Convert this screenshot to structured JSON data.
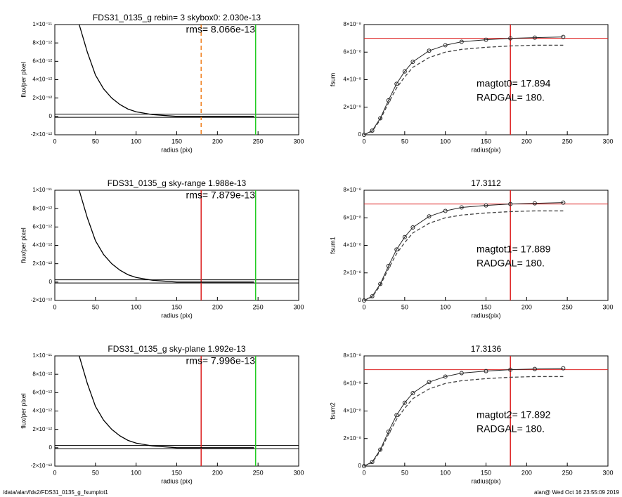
{
  "chart_data": [
    {
      "type": "line",
      "title": "FDS31_0135_g rebin= 3    skybox0:  2.030e-13",
      "annotations": [
        "rms= 8.066e-13"
      ],
      "xlabel": "radius (pix)",
      "ylabel": "flux/per pixel",
      "xlim": [
        0,
        300
      ],
      "xticks": [
        0,
        50,
        100,
        150,
        200,
        250,
        300
      ],
      "ylim": [
        -2e-12,
        1e-11
      ],
      "yticks": [
        {
          "value": -2e-12,
          "label": "-2×10⁻¹²"
        },
        0,
        {
          "value": 2e-12,
          "label": "2×10⁻¹²"
        },
        {
          "value": 4e-12,
          "label": "4×10⁻¹²"
        },
        {
          "value": 6e-12,
          "label": "6×10⁻¹²"
        },
        {
          "value": 8e-12,
          "label": "8×10⁻¹²"
        },
        {
          "value": 1e-11,
          "label": "1×10⁻¹¹"
        }
      ],
      "x": [
        30,
        40,
        50,
        60,
        70,
        80,
        90,
        100,
        120,
        150,
        200,
        245
      ],
      "series": [
        {
          "color": "#000000",
          "values": [
            1e-11,
            7e-12,
            4.5e-12,
            3e-12,
            2e-12,
            1.3e-12,
            8e-13,
            5e-13,
            2e-13,
            0,
            0,
            0
          ]
        }
      ],
      "hlines": [
        {
          "y": 2.5e-13,
          "color": "#000000"
        },
        {
          "y": -1e-13,
          "color": "#000000"
        }
      ],
      "vlines": [
        {
          "x": 180,
          "color": "#f08020",
          "dashed": true
        },
        {
          "x": 247,
          "color": "#22cc22"
        }
      ]
    },
    {
      "type": "line",
      "annotations": [
        "magtot0=  17.894",
        "RADGAL=    180."
      ],
      "xlabel": "radius(pix)",
      "ylabel": "fsum",
      "xlim": [
        0,
        300
      ],
      "xticks": [
        0,
        50,
        100,
        150,
        200,
        250,
        300
      ],
      "ylim": [
        0,
        8e-08
      ],
      "yticks": [
        0,
        {
          "value": 2e-08,
          "label": "2×10⁻⁸"
        },
        {
          "value": 4e-08,
          "label": "4×10⁻⁸"
        },
        {
          "value": 6e-08,
          "label": "6×10⁻⁸"
        },
        {
          "value": 8e-08,
          "label": "8×10⁻⁸"
        }
      ],
      "x": [
        0,
        10,
        20,
        30,
        40,
        50,
        60,
        80,
        100,
        120,
        150,
        180,
        210,
        245
      ],
      "series": [
        {
          "color": "#222222",
          "marker": "circle",
          "values": [
            0,
            3e-09,
            1.2e-08,
            2.5e-08,
            3.7e-08,
            4.6e-08,
            5.3e-08,
            6.1e-08,
            6.5e-08,
            6.75e-08,
            6.9e-08,
            7e-08,
            7.05e-08,
            7.1e-08
          ]
        },
        {
          "color": "#444444",
          "dashed": true,
          "values": [
            0,
            2.5e-09,
            1.1e-08,
            2.3e-08,
            3.4e-08,
            4.2e-08,
            4.9e-08,
            5.6e-08,
            6e-08,
            6.2e-08,
            6.35e-08,
            6.45e-08,
            6.5e-08,
            6.5e-08
          ]
        }
      ],
      "hlines": [
        {
          "y": 7e-08,
          "color": "#dd2222"
        }
      ],
      "vlines": [
        {
          "x": 180,
          "color": "#dd2222"
        }
      ]
    },
    {
      "type": "line",
      "title": "FDS31_0135_g sky-range  1.988e-13",
      "annotations": [
        "rms= 7.879e-13"
      ],
      "xlabel": "radius (pix)",
      "ylabel": "flux/per pixel",
      "xlim": [
        0,
        300
      ],
      "xticks": [
        0,
        50,
        100,
        150,
        200,
        250,
        300
      ],
      "ylim": [
        -2e-12,
        1e-11
      ],
      "yticks": [
        {
          "value": -2e-12,
          "label": "-2×10⁻¹²"
        },
        0,
        {
          "value": 2e-12,
          "label": "2×10⁻¹²"
        },
        {
          "value": 4e-12,
          "label": "4×10⁻¹²"
        },
        {
          "value": 6e-12,
          "label": "6×10⁻¹²"
        },
        {
          "value": 8e-12,
          "label": "8×10⁻¹²"
        },
        {
          "value": 1e-11,
          "label": "1×10⁻¹¹"
        }
      ],
      "x": [
        30,
        40,
        50,
        60,
        70,
        80,
        90,
        100,
        120,
        150,
        200,
        245
      ],
      "series": [
        {
          "color": "#000000",
          "values": [
            1e-11,
            7e-12,
            4.5e-12,
            3e-12,
            2e-12,
            1.3e-12,
            8e-13,
            5e-13,
            2e-13,
            0,
            0,
            0
          ]
        }
      ],
      "hlines": [
        {
          "y": 2.5e-13,
          "color": "#000000"
        },
        {
          "y": -1e-13,
          "color": "#000000"
        }
      ],
      "vlines": [
        {
          "x": 180,
          "color": "#dd2222"
        },
        {
          "x": 247,
          "color": "#22cc22"
        }
      ]
    },
    {
      "type": "line",
      "title": "17.3112",
      "annotations": [
        "magtot1=  17.889",
        "RADGAL=    180."
      ],
      "xlabel": "radius(pix)",
      "ylabel": "fsum1",
      "xlim": [
        0,
        300
      ],
      "xticks": [
        0,
        50,
        100,
        150,
        200,
        250,
        300
      ],
      "ylim": [
        0,
        8e-08
      ],
      "yticks": [
        0,
        {
          "value": 2e-08,
          "label": "2×10⁻⁸"
        },
        {
          "value": 4e-08,
          "label": "4×10⁻⁸"
        },
        {
          "value": 6e-08,
          "label": "6×10⁻⁸"
        },
        {
          "value": 8e-08,
          "label": "8×10⁻⁸"
        }
      ],
      "x": [
        0,
        10,
        20,
        30,
        40,
        50,
        60,
        80,
        100,
        120,
        150,
        180,
        210,
        245
      ],
      "series": [
        {
          "color": "#222222",
          "marker": "circle",
          "values": [
            0,
            3e-09,
            1.2e-08,
            2.5e-08,
            3.7e-08,
            4.6e-08,
            5.3e-08,
            6.1e-08,
            6.5e-08,
            6.75e-08,
            6.9e-08,
            7e-08,
            7.05e-08,
            7.1e-08
          ]
        },
        {
          "color": "#444444",
          "dashed": true,
          "values": [
            0,
            2.5e-09,
            1.1e-08,
            2.3e-08,
            3.4e-08,
            4.2e-08,
            4.9e-08,
            5.6e-08,
            6e-08,
            6.2e-08,
            6.35e-08,
            6.45e-08,
            6.5e-08,
            6.5e-08
          ]
        }
      ],
      "hlines": [
        {
          "y": 7e-08,
          "color": "#dd2222"
        }
      ],
      "vlines": [
        {
          "x": 180,
          "color": "#dd2222"
        }
      ]
    },
    {
      "type": "line",
      "title": "FDS31_0135_g sky-plane  1.992e-13",
      "annotations": [
        "rms= 7.996e-13"
      ],
      "xlabel": "radius (pix)",
      "ylabel": "flux/per pixel",
      "xlim": [
        0,
        300
      ],
      "xticks": [
        0,
        50,
        100,
        150,
        200,
        250,
        300
      ],
      "ylim": [
        -2e-12,
        1e-11
      ],
      "yticks": [
        {
          "value": -2e-12,
          "label": "-2×10⁻¹²"
        },
        0,
        {
          "value": 2e-12,
          "label": "2×10⁻¹²"
        },
        {
          "value": 4e-12,
          "label": "4×10⁻¹²"
        },
        {
          "value": 6e-12,
          "label": "6×10⁻¹²"
        },
        {
          "value": 8e-12,
          "label": "8×10⁻¹²"
        },
        {
          "value": 1e-11,
          "label": "1×10⁻¹¹"
        }
      ],
      "x": [
        30,
        40,
        50,
        60,
        70,
        80,
        90,
        100,
        120,
        150,
        200,
        245
      ],
      "series": [
        {
          "color": "#000000",
          "values": [
            1e-11,
            7e-12,
            4.5e-12,
            3e-12,
            2e-12,
            1.3e-12,
            8e-13,
            5e-13,
            2e-13,
            0,
            0,
            0
          ]
        }
      ],
      "hlines": [
        {
          "y": 2.5e-13,
          "color": "#000000"
        },
        {
          "y": -1e-13,
          "color": "#000000"
        }
      ],
      "vlines": [
        {
          "x": 180,
          "color": "#dd2222"
        },
        {
          "x": 247,
          "color": "#22cc22"
        }
      ]
    },
    {
      "type": "line",
      "title": "17.3136",
      "annotations": [
        "magtot2=  17.892",
        "RADGAL=    180."
      ],
      "xlabel": "radius(pix)",
      "ylabel": "fsum2",
      "xlim": [
        0,
        300
      ],
      "xticks": [
        0,
        50,
        100,
        150,
        200,
        250,
        300
      ],
      "ylim": [
        0,
        8e-08
      ],
      "yticks": [
        0,
        {
          "value": 2e-08,
          "label": "2×10⁻⁸"
        },
        {
          "value": 4e-08,
          "label": "4×10⁻⁸"
        },
        {
          "value": 6e-08,
          "label": "6×10⁻⁸"
        },
        {
          "value": 8e-08,
          "label": "8×10⁻⁸"
        }
      ],
      "x": [
        0,
        10,
        20,
        30,
        40,
        50,
        60,
        80,
        100,
        120,
        150,
        180,
        210,
        245
      ],
      "series": [
        {
          "color": "#222222",
          "marker": "circle",
          "values": [
            0,
            3e-09,
            1.2e-08,
            2.5e-08,
            3.7e-08,
            4.6e-08,
            5.3e-08,
            6.1e-08,
            6.5e-08,
            6.75e-08,
            6.9e-08,
            7e-08,
            7.05e-08,
            7.1e-08
          ]
        },
        {
          "color": "#444444",
          "dashed": true,
          "values": [
            0,
            2.5e-09,
            1.1e-08,
            2.3e-08,
            3.4e-08,
            4.2e-08,
            4.9e-08,
            5.6e-08,
            6e-08,
            6.2e-08,
            6.35e-08,
            6.45e-08,
            6.5e-08,
            6.5e-08
          ]
        }
      ],
      "hlines": [
        {
          "y": 7e-08,
          "color": "#dd2222"
        }
      ],
      "vlines": [
        {
          "x": 180,
          "color": "#dd2222"
        }
      ]
    }
  ],
  "footer": {
    "left": "/data/alan/fds2/FDS31_0135_g_fsumplot1",
    "right": "alan@  Wed Oct 16 23:55:09 2019"
  }
}
